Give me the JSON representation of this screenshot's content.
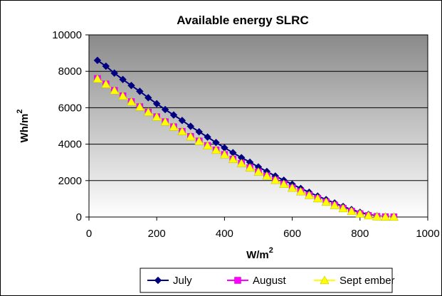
{
  "chart_data": {
    "type": "line",
    "title": "Available energy  SLRC",
    "xlabel": "W/m",
    "xlabel_sup": "2",
    "ylabel": "Wh/m",
    "ylabel_sup": "2",
    "xlim": [
      0,
      1000
    ],
    "ylim": [
      0,
      10000
    ],
    "xticks": [
      "0",
      "200",
      "400",
      "600",
      "800",
      "1000"
    ],
    "yticks": [
      "0",
      "2000",
      "4000",
      "6000",
      "8000",
      "10000"
    ],
    "grid": "horizontal",
    "legend": "bottom",
    "background": "gradient-gray",
    "series": [
      {
        "name": "July",
        "color": "#000080",
        "marker": "diamond",
        "x": [
          25,
          50,
          75,
          100,
          125,
          150,
          175,
          200,
          225,
          250,
          275,
          300,
          325,
          350,
          375,
          400,
          425,
          450,
          475,
          500,
          525,
          550,
          575,
          600,
          625,
          650,
          675,
          700,
          725,
          750,
          775,
          800,
          825,
          850,
          875,
          900
        ],
        "y": [
          8600,
          8280,
          7900,
          7550,
          7220,
          6900,
          6550,
          6220,
          5900,
          5600,
          5300,
          4980,
          4680,
          4390,
          4090,
          3800,
          3530,
          3260,
          3010,
          2750,
          2500,
          2250,
          2020,
          1800,
          1570,
          1360,
          1150,
          960,
          770,
          580,
          410,
          260,
          140,
          60,
          20,
          10
        ]
      },
      {
        "name": "August",
        "color": "#FF00FF",
        "marker": "square",
        "x": [
          25,
          50,
          75,
          100,
          125,
          150,
          175,
          200,
          225,
          250,
          275,
          300,
          325,
          350,
          375,
          400,
          425,
          450,
          475,
          500,
          525,
          550,
          575,
          600,
          625,
          650,
          675,
          700,
          725,
          750,
          775,
          800,
          825,
          850,
          875,
          900
        ],
        "y": [
          7600,
          7300,
          6950,
          6650,
          6330,
          6050,
          5760,
          5500,
          5230,
          4950,
          4700,
          4420,
          4170,
          3920,
          3680,
          3430,
          3180,
          2950,
          2710,
          2480,
          2260,
          2030,
          1810,
          1600,
          1400,
          1200,
          1020,
          830,
          650,
          480,
          320,
          180,
          80,
          30,
          10,
          5
        ]
      },
      {
        "name": "Sept ember",
        "color": "#FFFF00",
        "marker": "triangle",
        "x": [
          25,
          50,
          75,
          100,
          125,
          150,
          175,
          200,
          225,
          250,
          275,
          300,
          325,
          350,
          375,
          400,
          425,
          450,
          475,
          500,
          525,
          550,
          575,
          600,
          625,
          650,
          675,
          700,
          725,
          750,
          775,
          800,
          825,
          850,
          875,
          900
        ],
        "y": [
          7580,
          7290,
          6940,
          6640,
          6320,
          6040,
          5750,
          5490,
          5220,
          4940,
          4690,
          4410,
          4160,
          3910,
          3670,
          3420,
          3170,
          2940,
          2700,
          2470,
          2250,
          2020,
          1800,
          1590,
          1390,
          1190,
          1010,
          820,
          640,
          470,
          310,
          170,
          70,
          20,
          5,
          0
        ]
      }
    ]
  }
}
